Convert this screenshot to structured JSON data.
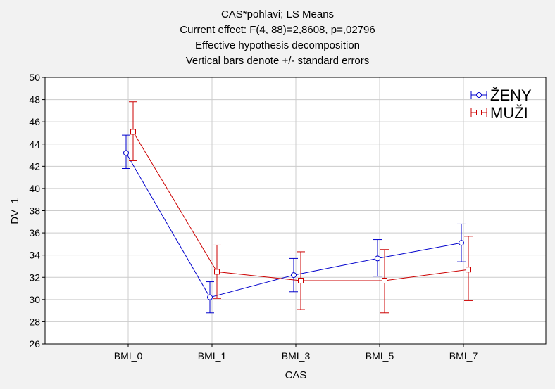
{
  "chart_data": {
    "type": "line",
    "title_lines": [
      "CAS*pohlavi; LS Means",
      "Current effect: F(4, 88)=2,8608, p=,02796",
      "Effective hypothesis decomposition",
      "Vertical bars denote +/- standard errors"
    ],
    "xlabel": "CAS",
    "ylabel": "DV_1",
    "categories": [
      "BMI_0",
      "BMI_1",
      "BMI_3",
      "BMI_5",
      "BMI_7"
    ],
    "ylim": [
      26,
      50
    ],
    "yticks": [
      26,
      28,
      30,
      32,
      34,
      36,
      38,
      40,
      42,
      44,
      46,
      48,
      50
    ],
    "grid": true,
    "legend_position": "top-right",
    "series": [
      {
        "name": "ŽENY",
        "color": "#0000cc",
        "marker": "circle",
        "values": [
          43.2,
          30.2,
          32.2,
          33.7,
          35.1
        ],
        "lower": [
          41.8,
          28.8,
          30.7,
          32.1,
          33.4
        ],
        "upper": [
          44.8,
          31.6,
          33.7,
          35.4,
          36.8
        ]
      },
      {
        "name": "MUŽI",
        "color": "#cc0000",
        "marker": "square",
        "values": [
          45.1,
          32.5,
          31.7,
          31.7,
          32.7
        ],
        "lower": [
          42.5,
          30.1,
          29.1,
          28.8,
          29.9
        ],
        "upper": [
          47.8,
          34.9,
          34.3,
          34.5,
          35.7
        ]
      }
    ]
  }
}
